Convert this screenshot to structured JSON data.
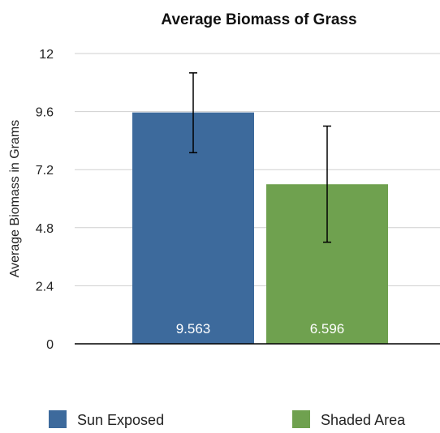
{
  "chart_data": {
    "type": "bar",
    "title": "Average Biomass of Grass",
    "xlabel": "",
    "ylabel": "Average Biomass in Grams",
    "ylim": [
      0,
      12
    ],
    "yticks": [
      "0",
      "2.4",
      "4.8",
      "7.2",
      "9.6",
      "12"
    ],
    "grid": true,
    "legend_position": "bottom",
    "series": [
      {
        "name": "Sun Exposed",
        "value": 9.563,
        "label": "9.563",
        "error_low": 7.9,
        "error_high": 11.2,
        "color": "#3d6a9c"
      },
      {
        "name": "Shaded Area",
        "value": 6.596,
        "label": "6.596",
        "error_low": 4.2,
        "error_high": 9.0,
        "color": "#6fa14f"
      }
    ]
  }
}
